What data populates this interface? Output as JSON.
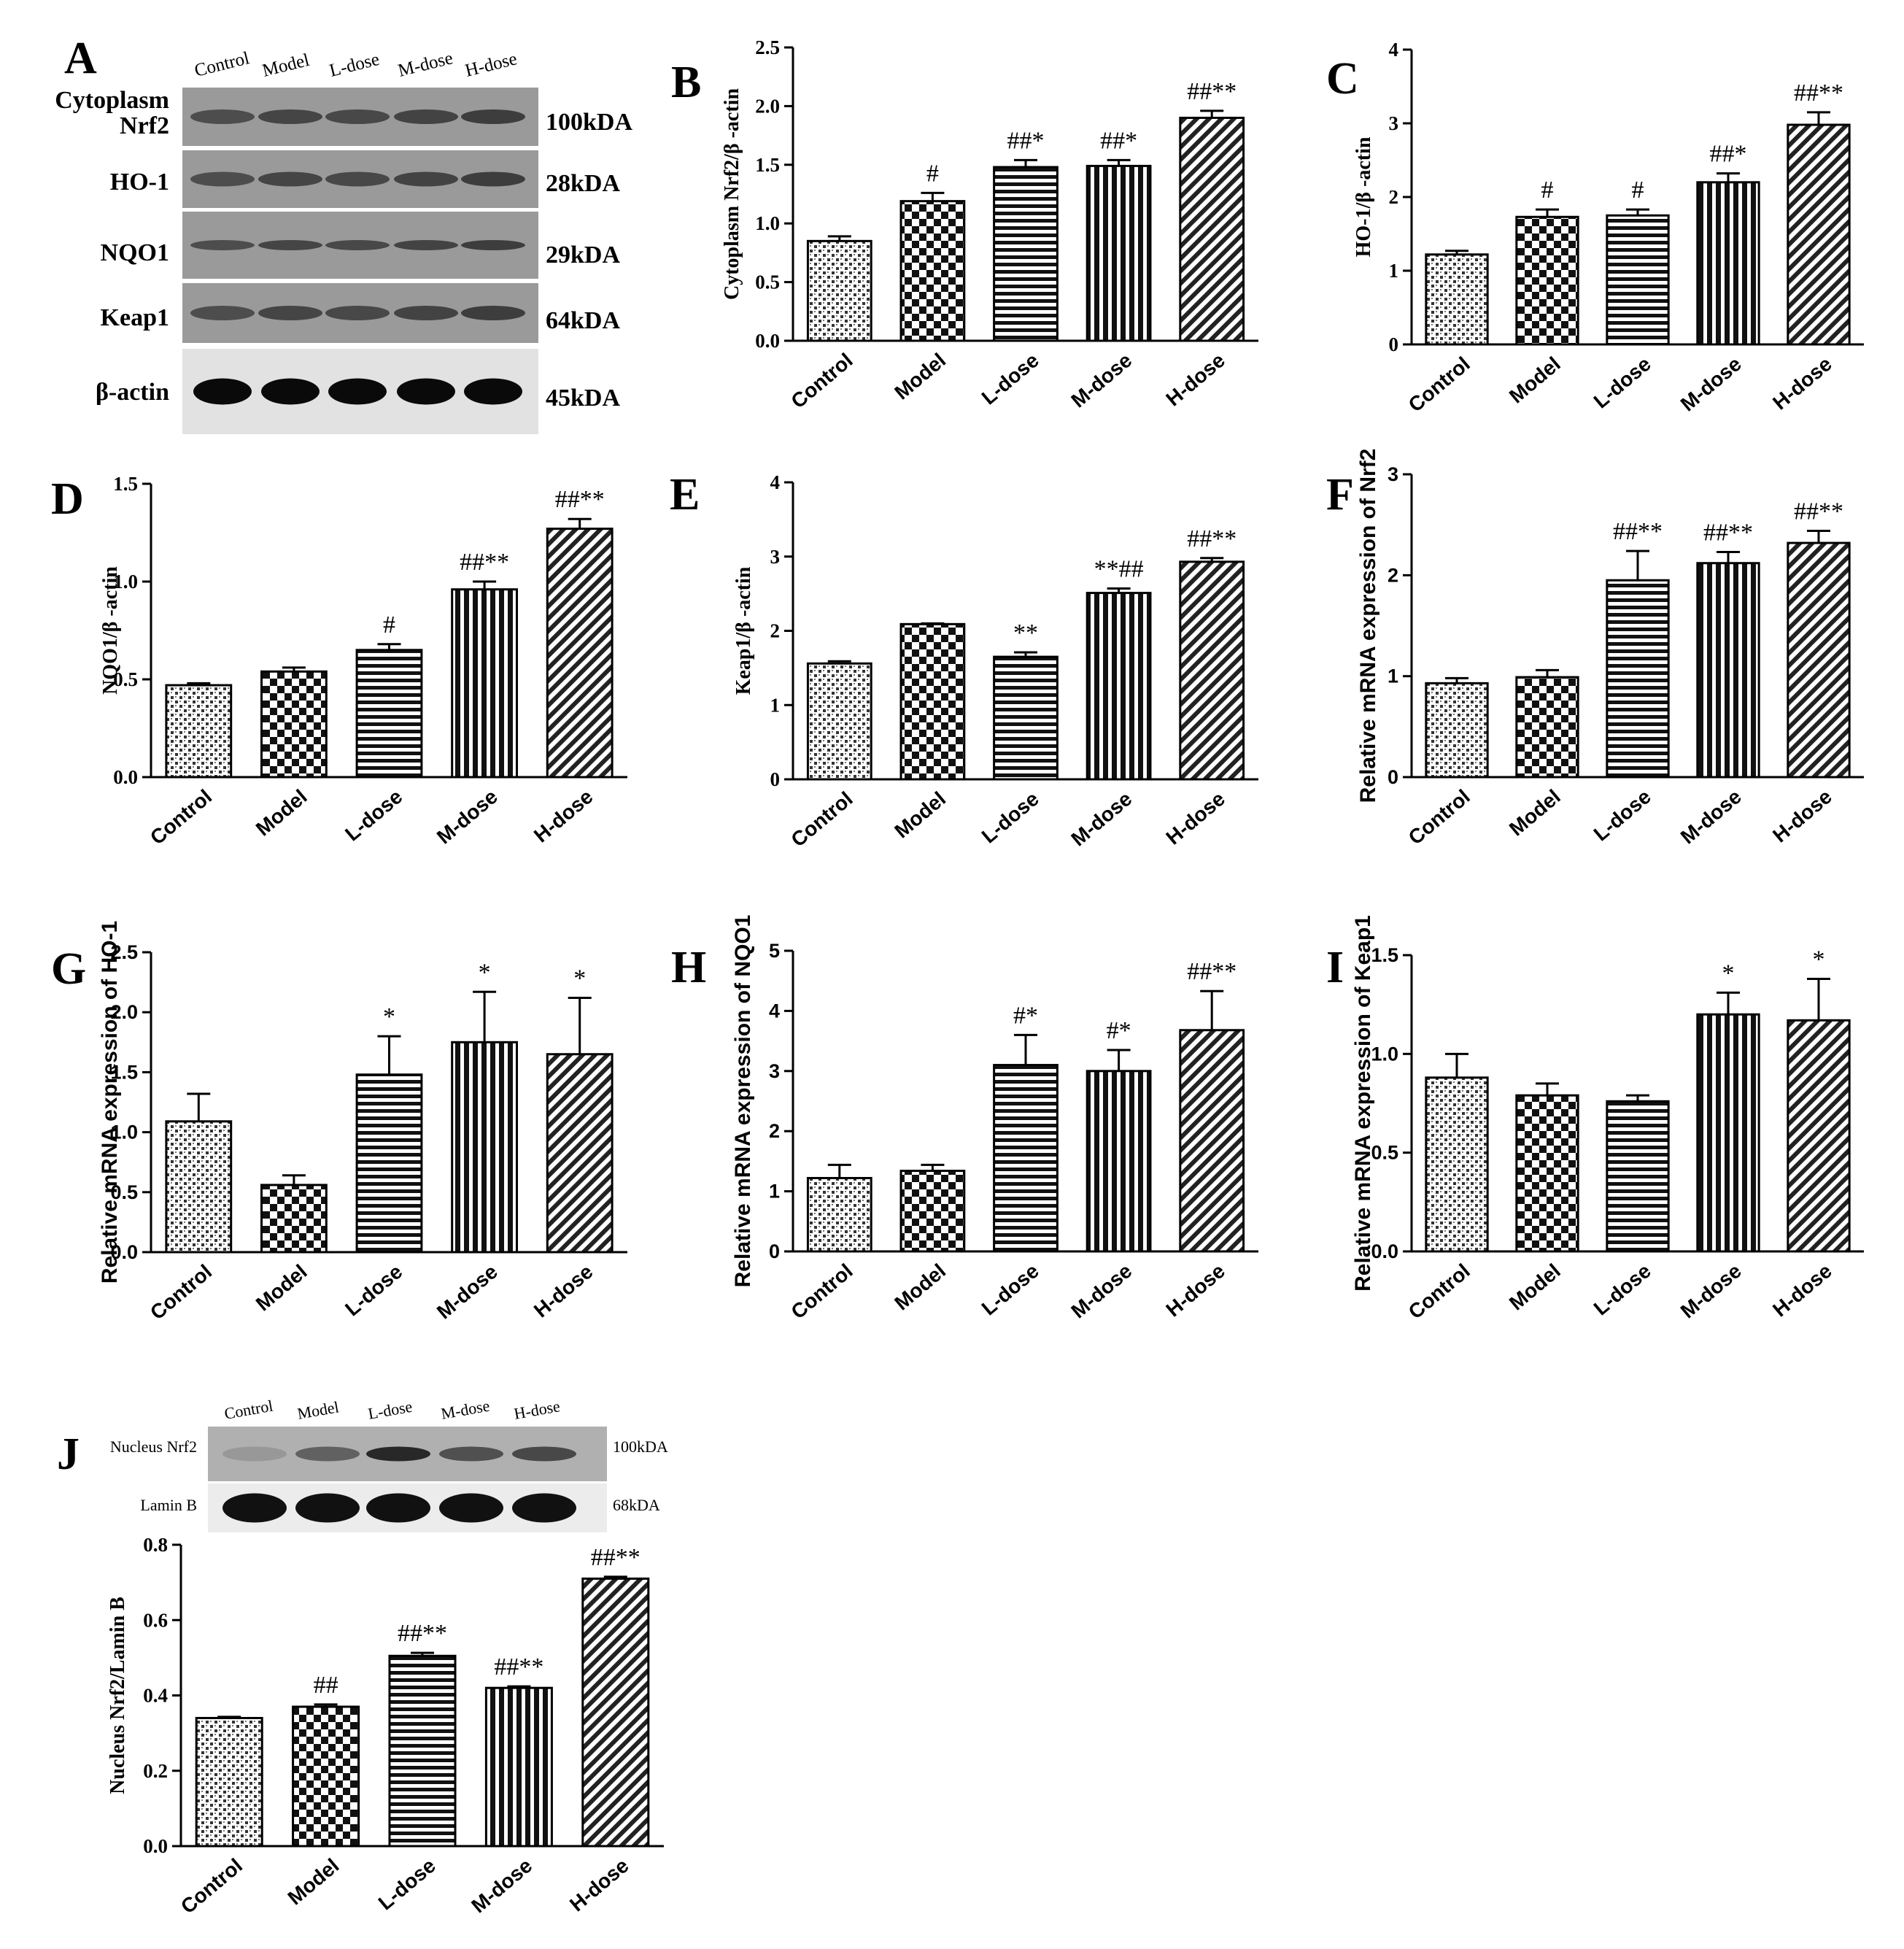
{
  "categories": [
    "Control",
    "Model",
    "L-dose",
    "M-dose",
    "H-dose"
  ],
  "western_a": {
    "letter": "A",
    "lanes": [
      "Control",
      "Model",
      "L-dose",
      "M-dose",
      "H-dose"
    ],
    "rows": [
      {
        "label": "Cytoplasm Nrf2",
        "size": "100kDA"
      },
      {
        "label": "HO-1",
        "size": "28kDA"
      },
      {
        "label": "NQO1",
        "size": "29kDA"
      },
      {
        "label": "Keap1",
        "size": "64kDA"
      },
      {
        "label": "β-actin",
        "size": "45kDA"
      }
    ]
  },
  "western_j": {
    "lanes": [
      "Control",
      "Model",
      "L-dose",
      "M-dose",
      "H-dose"
    ],
    "rows": [
      {
        "label": "Nucleus Nrf2",
        "size": "100kDA"
      },
      {
        "label": "Lamin B",
        "size": "68kDA"
      }
    ]
  },
  "chart_data": [
    {
      "panel": "B",
      "type": "bar",
      "ylabel": "Cytoplasm  Nrf2/β -actin",
      "categories": [
        "Control",
        "Model",
        "L-dose",
        "M-dose",
        "H-dose"
      ],
      "values": [
        0.85,
        1.19,
        1.48,
        1.49,
        1.9
      ],
      "errors": [
        0.04,
        0.07,
        0.06,
        0.05,
        0.06
      ],
      "annotations": [
        "",
        "#",
        "##*",
        "##*",
        "##**"
      ],
      "ylim": [
        0,
        2.5
      ],
      "ticks": [
        "0.0",
        "0.5",
        "1.0",
        "1.5",
        "2.0",
        "2.5"
      ]
    },
    {
      "panel": "C",
      "type": "bar",
      "ylabel": "HO-1/β -actin",
      "categories": [
        "Control",
        "Model",
        "L-dose",
        "M-dose",
        "H-dose"
      ],
      "values": [
        1.22,
        1.73,
        1.75,
        2.2,
        2.98
      ],
      "errors": [
        0.05,
        0.1,
        0.08,
        0.12,
        0.17
      ],
      "annotations": [
        "",
        "#",
        "#",
        "##*",
        "##**"
      ],
      "ylim": [
        0,
        4
      ],
      "ticks": [
        "0",
        "1",
        "2",
        "3",
        "4"
      ]
    },
    {
      "panel": "D",
      "type": "bar",
      "ylabel": "NQO1/β -actin",
      "categories": [
        "Control",
        "Model",
        "L-dose",
        "M-dose",
        "H-dose"
      ],
      "values": [
        0.47,
        0.54,
        0.65,
        0.96,
        1.27
      ],
      "errors": [
        0.01,
        0.02,
        0.03,
        0.04,
        0.05
      ],
      "annotations": [
        "",
        "",
        "#",
        "##**",
        "##**"
      ],
      "ylim": [
        0,
        1.5
      ],
      "ticks": [
        "0.0",
        "0.5",
        "1.0",
        "1.5"
      ]
    },
    {
      "panel": "E",
      "type": "bar",
      "ylabel": "Keap1/β -actin",
      "categories": [
        "Control",
        "Model",
        "L-dose",
        "M-dose",
        "H-dose"
      ],
      "values": [
        1.56,
        2.09,
        1.65,
        2.51,
        2.93
      ],
      "errors": [
        0.03,
        0.01,
        0.06,
        0.06,
        0.05
      ],
      "annotations": [
        "",
        "",
        "**",
        "**##",
        "##**"
      ],
      "ylim": [
        0,
        4
      ],
      "ticks": [
        "0",
        "1",
        "2",
        "3",
        "4"
      ]
    },
    {
      "panel": "F",
      "type": "bar",
      "ylabel": "Relative mRNA expression of Nrf2",
      "categories": [
        "Control",
        "Model",
        "L-dose",
        "M-dose",
        "H-dose"
      ],
      "values": [
        0.93,
        0.99,
        1.95,
        2.12,
        2.32
      ],
      "errors": [
        0.05,
        0.07,
        0.29,
        0.11,
        0.12
      ],
      "annotations": [
        "",
        "",
        "##**",
        "##**",
        "##**"
      ],
      "ylim": [
        0,
        3
      ],
      "ticks": [
        "0",
        "1",
        "2",
        "3"
      ]
    },
    {
      "panel": "G",
      "type": "bar",
      "ylabel": "Relative mRNA expression of HO-1",
      "categories": [
        "Control",
        "Model",
        "L-dose",
        "M-dose",
        "H-dose"
      ],
      "values": [
        1.09,
        0.56,
        1.48,
        1.75,
        1.65
      ],
      "errors": [
        0.23,
        0.08,
        0.32,
        0.42,
        0.47
      ],
      "annotations": [
        "",
        "",
        "*",
        "*",
        "*"
      ],
      "ylim": [
        0,
        2.5
      ],
      "ticks": [
        "0.0",
        "0.5",
        "1.0",
        "1.5",
        "2.0",
        "2.5"
      ]
    },
    {
      "panel": "H",
      "type": "bar",
      "ylabel": "Relative mRNA expression of NQO1",
      "categories": [
        "Control",
        "Model",
        "L-dose",
        "M-dose",
        "H-dose"
      ],
      "values": [
        1.22,
        1.34,
        3.1,
        3.0,
        3.68
      ],
      "errors": [
        0.22,
        0.1,
        0.5,
        0.35,
        0.65
      ],
      "annotations": [
        "",
        "",
        "#*",
        "#*",
        "##**"
      ],
      "ylim": [
        0,
        5
      ],
      "ticks": [
        "0",
        "1",
        "2",
        "3",
        "4",
        "5"
      ]
    },
    {
      "panel": "I",
      "type": "bar",
      "ylabel": "Relative mRNA expression of Keap1",
      "categories": [
        "Control",
        "Model",
        "L-dose",
        "M-dose",
        "H-dose"
      ],
      "values": [
        0.88,
        0.79,
        0.76,
        1.2,
        1.17
      ],
      "errors": [
        0.12,
        0.06,
        0.03,
        0.11,
        0.21
      ],
      "annotations": [
        "",
        "",
        "",
        "*",
        "*"
      ],
      "ylim": [
        0,
        1.5
      ],
      "ticks": [
        "0.0",
        "0.5",
        "1.0",
        "1.5"
      ]
    },
    {
      "panel": "J",
      "type": "bar",
      "ylabel": "Nucleus Nrf2/Lamin B",
      "categories": [
        "Control",
        "Model",
        "L-dose",
        "M-dose",
        "H-dose"
      ],
      "values": [
        0.34,
        0.37,
        0.505,
        0.42,
        0.71
      ],
      "errors": [
        0.003,
        0.006,
        0.008,
        0.004,
        0.005
      ],
      "annotations": [
        "",
        "##",
        "##**",
        "##**",
        "##**"
      ],
      "ylim": [
        0,
        0.8
      ],
      "ticks": [
        "0.0",
        "0.2",
        "0.4",
        "0.6",
        "0.8"
      ]
    }
  ]
}
